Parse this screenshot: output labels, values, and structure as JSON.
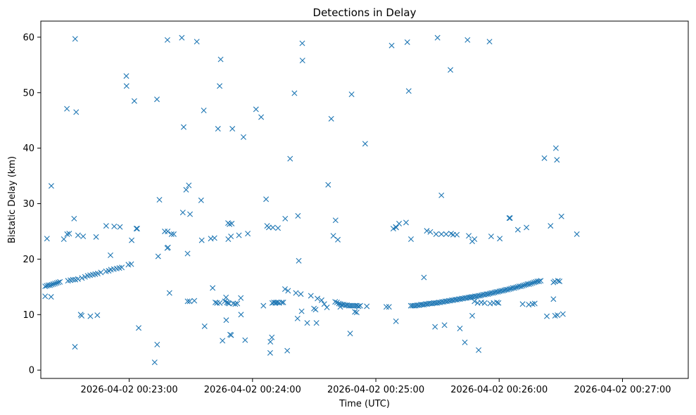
{
  "chart_data": {
    "type": "scatter",
    "title": "Detections in Delay",
    "xlabel": "Time (UTC)",
    "ylabel": "Bistatic Delay (km)",
    "marker": "x",
    "color": "#1f77b4",
    "xlim_seconds_after_00_22_00": [
      17,
      332
    ],
    "ylim": [
      -1.5,
      62.9
    ],
    "x_ticks": [
      {
        "value": 60,
        "label": "2026-04-02 00:23:00"
      },
      {
        "value": 120,
        "label": "2026-04-02 00:24:00"
      },
      {
        "value": 180,
        "label": "2026-04-02 00:25:00"
      },
      {
        "value": 240,
        "label": "2026-04-02 00:26:00"
      },
      {
        "value": 300,
        "label": "2026-04-02 00:27:00"
      }
    ],
    "y_ticks": [
      {
        "value": 0,
        "label": "0"
      },
      {
        "value": 10,
        "label": "10"
      },
      {
        "value": 20,
        "label": "20"
      },
      {
        "value": 30,
        "label": "30"
      },
      {
        "value": 40,
        "label": "40"
      },
      {
        "value": 50,
        "label": "50"
      },
      {
        "value": 60,
        "label": "60"
      }
    ],
    "x_unit_note": "x values are seconds after 2026-04-02 00:22:00 UTC",
    "points": [
      [
        19.1,
        15.1
      ],
      [
        19.9,
        15.2
      ],
      [
        20.7,
        15.3
      ],
      [
        21.5,
        15.3
      ],
      [
        22.3,
        15.4
      ],
      [
        23.1,
        15.5
      ],
      [
        23.9,
        15.6
      ],
      [
        24.7,
        15.7
      ],
      [
        25.5,
        15.8
      ],
      [
        26.3,
        15.9
      ],
      [
        30.2,
        16.1
      ],
      [
        31.4,
        16.2
      ],
      [
        32.6,
        16.3
      ],
      [
        33.8,
        16.3
      ],
      [
        35.1,
        16.4
      ],
      [
        37.0,
        16.6
      ],
      [
        38.5,
        16.8
      ],
      [
        39.8,
        17.0
      ],
      [
        41.0,
        17.1
      ],
      [
        42.3,
        17.2
      ],
      [
        43.5,
        17.3
      ],
      [
        44.7,
        17.4
      ],
      [
        46.2,
        17.6
      ],
      [
        48.7,
        17.8
      ],
      [
        50.0,
        17.9
      ],
      [
        51.1,
        18.1
      ],
      [
        52.5,
        18.2
      ],
      [
        53.9,
        18.3
      ],
      [
        55.2,
        18.4
      ],
      [
        56.4,
        18.5
      ],
      [
        59.6,
        19.0
      ],
      [
        61.0,
        19.1
      ],
      [
        19.1,
        13.3
      ],
      [
        22.0,
        13.2
      ],
      [
        20.0,
        23.7
      ],
      [
        28.2,
        23.6
      ],
      [
        29.8,
        24.5
      ],
      [
        30.8,
        24.6
      ],
      [
        35.1,
        24.3
      ],
      [
        37.6,
        24.1
      ],
      [
        43.9,
        24.0
      ],
      [
        48.8,
        26.0
      ],
      [
        52.7,
        25.9
      ],
      [
        55.5,
        25.8
      ],
      [
        61.2,
        23.4
      ],
      [
        63.5,
        25.5
      ],
      [
        63.9,
        25.5
      ],
      [
        33.2,
        27.3
      ],
      [
        29.7,
        47.1
      ],
      [
        34.2,
        46.5
      ],
      [
        33.7,
        59.7
      ],
      [
        22.1,
        33.2
      ],
      [
        36.4,
        10.0
      ],
      [
        36.9,
        9.8
      ],
      [
        41.1,
        9.7
      ],
      [
        44.5,
        9.9
      ],
      [
        33.6,
        4.2
      ],
      [
        50.9,
        20.7
      ],
      [
        58.6,
        53.0
      ],
      [
        58.7,
        51.2
      ],
      [
        64.6,
        7.6
      ],
      [
        62.5,
        48.5
      ],
      [
        73.6,
        4.6
      ],
      [
        74.1,
        20.5
      ],
      [
        74.7,
        30.7
      ],
      [
        77.3,
        25.0
      ],
      [
        78.7,
        25.0
      ],
      [
        78.5,
        22.0
      ],
      [
        78.9,
        22.1
      ],
      [
        79.6,
        13.9
      ],
      [
        80.6,
        24.5
      ],
      [
        81.7,
        24.5
      ],
      [
        86.1,
        28.4
      ],
      [
        87.7,
        32.5
      ],
      [
        89.0,
        33.3
      ],
      [
        89.6,
        28.1
      ],
      [
        88.4,
        21.0
      ],
      [
        88.4,
        12.4
      ],
      [
        89.4,
        12.4
      ],
      [
        91.7,
        12.5
      ],
      [
        78.6,
        59.5
      ],
      [
        85.6,
        59.9
      ],
      [
        86.5,
        43.8
      ],
      [
        92.9,
        59.2
      ],
      [
        96.3,
        46.8
      ],
      [
        95.0,
        30.6
      ],
      [
        95.3,
        23.4
      ],
      [
        96.7,
        7.9
      ],
      [
        99.7,
        23.7
      ],
      [
        101.5,
        23.8
      ],
      [
        100.6,
        14.8
      ],
      [
        101.9,
        12.2
      ],
      [
        102.7,
        12.1
      ],
      [
        104.0,
        51.2
      ],
      [
        104.5,
        56.0
      ],
      [
        103.2,
        43.5
      ],
      [
        104.1,
        12.1
      ],
      [
        105.4,
        5.3
      ],
      [
        106.5,
        12.4
      ],
      [
        107.1,
        13.1
      ],
      [
        107.2,
        9.0
      ],
      [
        107.5,
        12.2
      ],
      [
        108.1,
        12.1
      ],
      [
        108.6,
        12.0
      ],
      [
        108.1,
        26.5
      ],
      [
        108.8,
        26.3
      ],
      [
        109.9,
        26.4
      ],
      [
        109.5,
        24.1
      ],
      [
        108.2,
        23.6
      ],
      [
        110.6,
        12.0
      ],
      [
        111.6,
        11.9
      ],
      [
        112.6,
        12.0
      ],
      [
        110.2,
        43.5
      ],
      [
        109.1,
        6.4
      ],
      [
        109.6,
        6.3
      ],
      [
        113.4,
        24.3
      ],
      [
        114.3,
        13.0
      ],
      [
        114.4,
        10.0
      ],
      [
        115.6,
        42.0
      ],
      [
        116.4,
        5.4
      ],
      [
        117.7,
        24.6
      ],
      [
        72.4,
        1.4
      ],
      [
        73.5,
        48.8
      ],
      [
        121.7,
        47.0
      ],
      [
        124.2,
        45.6
      ],
      [
        125.3,
        11.6
      ],
      [
        126.6,
        30.8
      ],
      [
        127.1,
        26.0
      ],
      [
        127.9,
        25.7
      ],
      [
        129.6,
        12.1
      ],
      [
        130.4,
        12.2
      ],
      [
        131.1,
        12.1
      ],
      [
        131.5,
        12.2
      ],
      [
        132.2,
        12.2
      ],
      [
        133.0,
        12.1
      ],
      [
        134.3,
        12.2
      ],
      [
        135.0,
        12.2
      ],
      [
        135.8,
        14.6
      ],
      [
        129.9,
        25.7
      ],
      [
        132.4,
        25.6
      ],
      [
        135.9,
        27.3
      ],
      [
        138.3,
        38.1
      ],
      [
        140.4,
        49.9
      ],
      [
        142.1,
        27.8
      ],
      [
        128.6,
        3.1
      ],
      [
        129.4,
        5.9
      ],
      [
        128.7,
        5.1
      ],
      [
        136.9,
        3.5
      ],
      [
        137.3,
        14.3
      ],
      [
        141.1,
        13.9
      ],
      [
        141.9,
        9.3
      ],
      [
        142.5,
        19.7
      ],
      [
        143.5,
        13.7
      ],
      [
        143.9,
        10.6
      ],
      [
        144.3,
        55.8
      ],
      [
        144.2,
        58.9
      ],
      [
        146.6,
        8.5
      ],
      [
        148.4,
        13.4
      ],
      [
        149.9,
        11.1
      ],
      [
        150.7,
        10.9
      ],
      [
        151.1,
        8.5
      ],
      [
        151.6,
        12.9
      ],
      [
        153.6,
        12.6
      ],
      [
        154.9,
        11.9
      ],
      [
        156.8,
        33.4
      ],
      [
        158.3,
        45.3
      ],
      [
        159.3,
        24.2
      ],
      [
        156.2,
        11.3
      ],
      [
        160.4,
        27.0
      ],
      [
        161.5,
        23.5
      ],
      [
        160.2,
        12.3
      ],
      [
        161.1,
        12.2
      ],
      [
        162.0,
        12.0
      ],
      [
        162.8,
        11.9
      ],
      [
        163.6,
        11.8
      ],
      [
        164.4,
        11.8
      ],
      [
        165.2,
        11.7
      ],
      [
        166.0,
        11.7
      ],
      [
        166.8,
        11.6
      ],
      [
        167.6,
        11.6
      ],
      [
        168.4,
        11.6
      ],
      [
        169.2,
        11.6
      ],
      [
        170.0,
        11.6
      ],
      [
        170.8,
        11.6
      ],
      [
        171.6,
        11.5
      ],
      [
        172.4,
        11.6
      ],
      [
        162.7,
        11.4
      ],
      [
        169.8,
        10.5
      ],
      [
        170.7,
        10.4
      ],
      [
        167.5,
        6.6
      ],
      [
        168.2,
        49.7
      ],
      [
        174.8,
        40.8
      ],
      [
        175.6,
        11.5
      ],
      [
        185.1,
        11.4
      ],
      [
        186.4,
        11.4
      ],
      [
        188.5,
        25.5
      ],
      [
        189.7,
        25.8
      ],
      [
        187.7,
        58.5
      ],
      [
        189.8,
        8.8
      ],
      [
        191.3,
        26.4
      ],
      [
        194.7,
        26.6
      ],
      [
        195.3,
        59.1
      ],
      [
        196.0,
        50.3
      ],
      [
        197.1,
        23.6
      ],
      [
        189.9,
        25.7
      ],
      [
        197.0,
        11.6
      ],
      [
        197.8,
        11.6
      ],
      [
        198.6,
        11.6
      ],
      [
        199.4,
        11.6
      ],
      [
        200.2,
        11.7
      ],
      [
        201.0,
        11.7
      ],
      [
        201.8,
        11.8
      ],
      [
        202.6,
        11.8
      ],
      [
        203.4,
        11.8
      ],
      [
        204.2,
        11.9
      ],
      [
        205.0,
        11.9
      ],
      [
        205.8,
        12.0
      ],
      [
        206.6,
        12.0
      ],
      [
        207.4,
        12.0
      ],
      [
        208.2,
        12.1
      ],
      [
        209.0,
        12.1
      ],
      [
        209.8,
        12.1
      ],
      [
        210.6,
        12.2
      ],
      [
        211.4,
        12.2
      ],
      [
        212.2,
        12.3
      ],
      [
        213.0,
        12.3
      ],
      [
        213.8,
        12.4
      ],
      [
        214.6,
        12.4
      ],
      [
        215.4,
        12.5
      ],
      [
        216.2,
        12.5
      ],
      [
        217.0,
        12.6
      ],
      [
        217.8,
        12.6
      ],
      [
        218.6,
        12.7
      ],
      [
        219.4,
        12.7
      ],
      [
        220.2,
        12.8
      ],
      [
        221.0,
        12.8
      ],
      [
        221.8,
        12.9
      ],
      [
        222.6,
        12.9
      ],
      [
        223.4,
        13.0
      ],
      [
        224.2,
        13.0
      ],
      [
        225.0,
        13.1
      ],
      [
        225.8,
        13.1
      ],
      [
        226.6,
        13.2
      ],
      [
        227.4,
        13.2
      ],
      [
        228.2,
        13.3
      ],
      [
        229.0,
        13.3
      ],
      [
        229.8,
        13.4
      ],
      [
        230.6,
        13.4
      ],
      [
        231.4,
        13.5
      ],
      [
        232.2,
        13.6
      ],
      [
        233.0,
        13.6
      ],
      [
        233.8,
        13.7
      ],
      [
        234.6,
        13.7
      ],
      [
        235.4,
        13.8
      ],
      [
        236.2,
        13.9
      ],
      [
        237.0,
        13.9
      ],
      [
        237.8,
        14.0
      ],
      [
        238.6,
        14.1
      ],
      [
        239.4,
        14.1
      ],
      [
        240.2,
        14.2
      ],
      [
        241.0,
        14.3
      ],
      [
        241.8,
        14.3
      ],
      [
        242.6,
        14.4
      ],
      [
        243.4,
        14.5
      ],
      [
        244.2,
        14.5
      ],
      [
        245.0,
        14.6
      ],
      [
        245.8,
        14.7
      ],
      [
        246.6,
        14.8
      ],
      [
        247.4,
        14.8
      ],
      [
        248.2,
        14.9
      ],
      [
        249.0,
        15.0
      ],
      [
        249.8,
        15.1
      ],
      [
        250.6,
        15.1
      ],
      [
        251.4,
        15.2
      ],
      [
        252.2,
        15.3
      ],
      [
        253.0,
        15.4
      ],
      [
        253.8,
        15.5
      ],
      [
        254.6,
        15.5
      ],
      [
        255.4,
        15.6
      ],
      [
        256.2,
        15.7
      ],
      [
        257.0,
        15.8
      ],
      [
        257.8,
        15.9
      ],
      [
        258.6,
        16.0
      ],
      [
        259.4,
        16.0
      ],
      [
        260.2,
        16.1
      ],
      [
        228.0,
        12.4
      ],
      [
        229.5,
        12.1
      ],
      [
        231.3,
        12.2
      ],
      [
        232.9,
        12.1
      ],
      [
        226.0,
        13.1
      ],
      [
        203.4,
        16.7
      ],
      [
        204.8,
        25.1
      ],
      [
        206.5,
        24.9
      ],
      [
        209.3,
        24.5
      ],
      [
        211.9,
        24.5
      ],
      [
        214.2,
        24.5
      ],
      [
        216.6,
        24.6
      ],
      [
        217.6,
        24.4
      ],
      [
        219.4,
        24.4
      ],
      [
        225.2,
        24.2
      ],
      [
        226.9,
        23.2
      ],
      [
        228.0,
        23.6
      ],
      [
        236.1,
        24.1
      ],
      [
        240.3,
        23.7
      ],
      [
        245.3,
        27.4
      ],
      [
        244.9,
        27.4
      ],
      [
        249.1,
        25.3
      ],
      [
        253.3,
        25.7
      ],
      [
        262.0,
        38.2
      ],
      [
        265.0,
        26.0
      ],
      [
        267.6,
        40.0
      ],
      [
        268.1,
        37.9
      ],
      [
        270.3,
        27.7
      ],
      [
        277.8,
        24.5
      ],
      [
        211.9,
        31.5
      ],
      [
        210.0,
        59.9
      ],
      [
        216.3,
        54.1
      ],
      [
        224.6,
        59.5
      ],
      [
        235.3,
        59.2
      ],
      [
        208.8,
        7.8
      ],
      [
        213.4,
        8.1
      ],
      [
        220.9,
        7.5
      ],
      [
        223.3,
        5.0
      ],
      [
        226.9,
        9.8
      ],
      [
        230.0,
        3.6
      ],
      [
        251.4,
        11.9
      ],
      [
        254.4,
        11.8
      ],
      [
        256.2,
        11.9
      ],
      [
        257.3,
        12.0
      ],
      [
        263.2,
        9.7
      ],
      [
        266.4,
        12.8
      ],
      [
        267.2,
        9.8
      ],
      [
        268.4,
        9.9
      ],
      [
        271.0,
        10.1
      ],
      [
        267.1,
        16.0
      ],
      [
        268.6,
        16.1
      ],
      [
        269.4,
        16.0
      ],
      [
        266.4,
        15.8
      ],
      [
        235.6,
        12.0
      ],
      [
        237.3,
        12.1
      ],
      [
        238.9,
        12.2
      ],
      [
        239.7,
        12.1
      ]
    ]
  }
}
